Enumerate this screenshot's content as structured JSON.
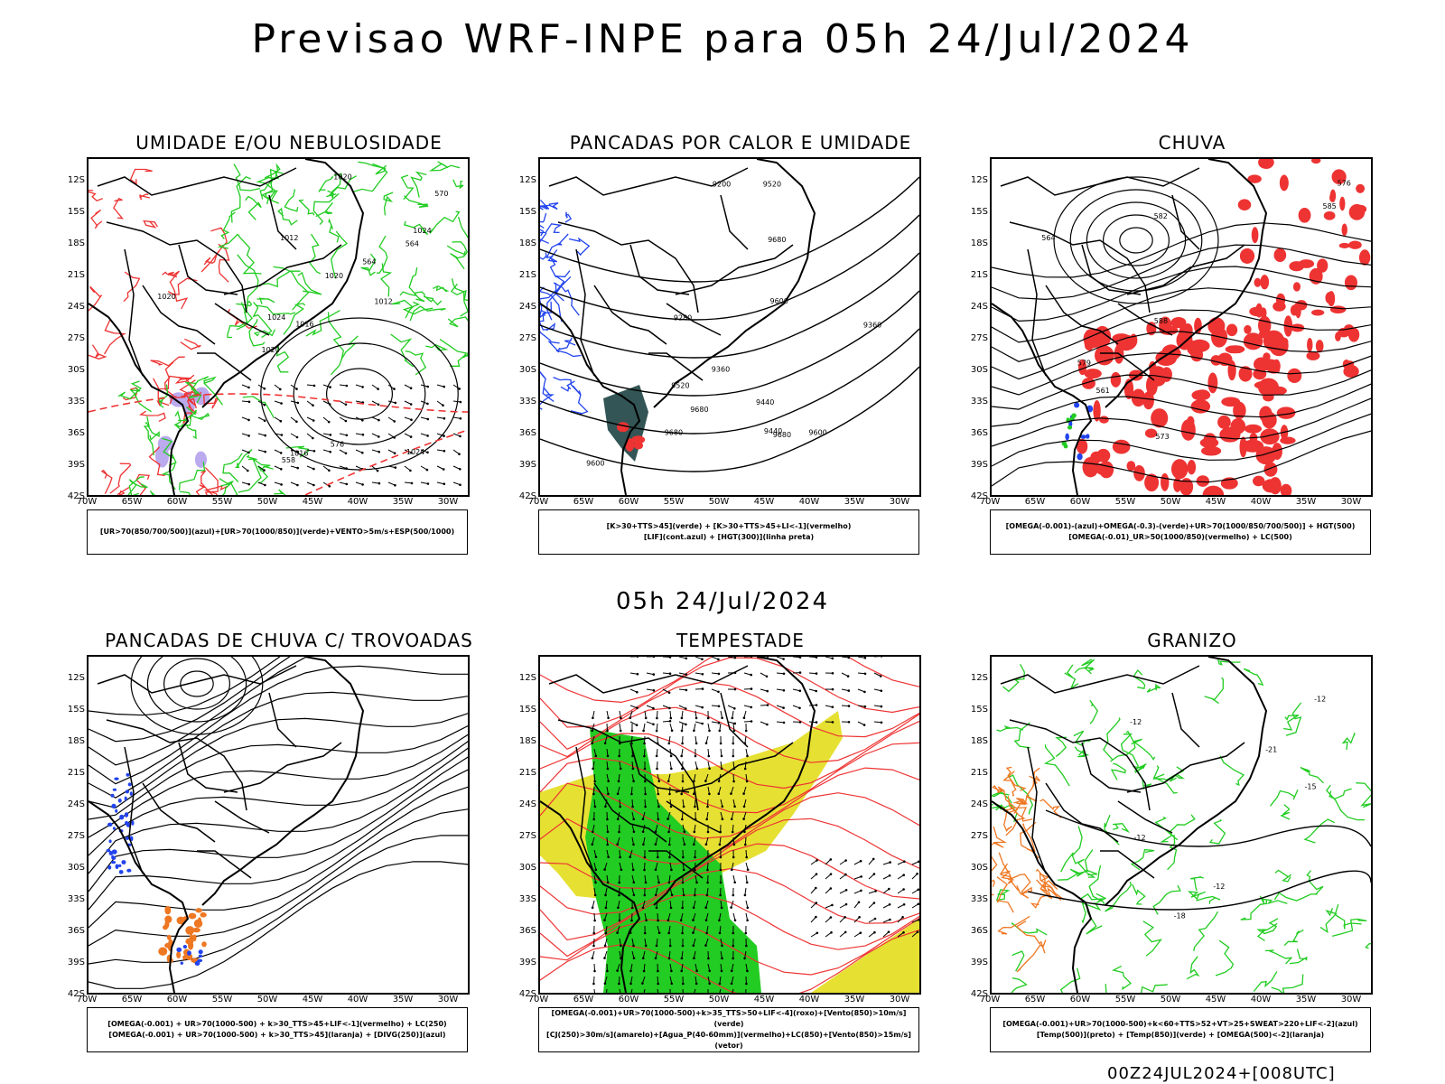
{
  "header": {
    "title": "Previsao WRF-INPE  para 05h 24/Jul/2024",
    "mid_title": "05h 24/Jul/2024",
    "footer": "00Z24JUL2024+[008UTC]"
  },
  "axes": {
    "lat_labels": [
      "12S",
      "15S",
      "18S",
      "21S",
      "24S",
      "27S",
      "30S",
      "33S",
      "36S",
      "39S",
      "42S"
    ],
    "lon_labels": [
      "70W",
      "65W",
      "60W",
      "55W",
      "50W",
      "45W",
      "40W",
      "35W",
      "30W"
    ]
  },
  "colors": {
    "green": "#22cc22",
    "red": "#ee3333",
    "blue": "#2244ee",
    "orange": "#ee7722",
    "yellow": "#e6e033",
    "dark_teal": "#335555",
    "lavender": "#bbaaee",
    "black": "#000000"
  },
  "panels": [
    {
      "title": "UMIDADE E/OU NEBULOSIDADE",
      "legend": [
        "[UR>70(850/700/500)](azul)+[UR>70(1000/850)](verde)+VENTO>5m/s+ESP(500/1000)"
      ],
      "contour_labels": [
        "1016",
        "1020",
        "1020",
        "1024",
        "1024",
        "1024",
        "1012",
        "1012",
        "1016",
        "1020",
        "1020",
        "570",
        "576",
        "564",
        "558",
        "564"
      ]
    },
    {
      "title": "PANCADAS POR CALOR E UMIDADE",
      "legend": [
        "[K>30+TTS>45](verde) + [K>30+TTS>45+LI<-1](vermelho)",
        "[LIF](cont.azul) + [HGT(300)](linha preta)"
      ],
      "contour_labels": [
        "9680",
        "9680",
        "9680",
        "9680",
        "9600",
        "9600",
        "9600",
        "9520",
        "9520",
        "9440",
        "9440",
        "9360",
        "9360",
        "9280",
        "9200"
      ]
    },
    {
      "title": "CHUVA",
      "legend": [
        "[OMEGA(-0.001)-(azul)+OMEGA(-0.3)-(verde)+UR>70(1000/850/700/500)] + HGT(500)",
        "[OMEGA(-0.01)_UR>50(1000/850)(vermelho) + LC(500)"
      ],
      "contour_labels": [
        "585",
        "582",
        "579",
        "576",
        "573",
        "564",
        "561",
        "588"
      ]
    },
    {
      "title": "PANCADAS DE CHUVA C/ TROVOADAS",
      "legend": [
        "[OMEGA(-0.001) + UR>70(1000-500) + k>30_TTS>45+LIF<-1](vermelho) + LC(250)",
        "[OMEGA(-0.001) + UR>70(1000-500) + k>30_TTS>45](laranja) + [DIVG(250)](azul)"
      ],
      "contour_labels": []
    },
    {
      "title": "TEMPESTADE",
      "legend": [
        "[OMEGA(-0.001)+UR>70(1000-500)+k>35_TTS>50+LIF<-4](roxo)+[Vento(850)>10m/s](verde)",
        "[CJ(250)>30m/s](amarelo)+[Agua_P(40-60mm)](vermelho)+LC(850)+[Vento(850)>15m/s](vetor)"
      ],
      "contour_labels": []
    },
    {
      "title": "GRANIZO",
      "legend": [
        "[OMEGA(-0.001)+UR>70(1000-500)+k<60+TTS>52+VT>25+SWEAT>220+LIF<-2](azul)",
        "[Temp(500)](preto) + [Temp(850)](verde) + [OMEGA(500)<-2](laranja)"
      ],
      "contour_labels": [
        "-12",
        "-12",
        "-12",
        "-12",
        "-18",
        "-21",
        "-15"
      ]
    }
  ]
}
